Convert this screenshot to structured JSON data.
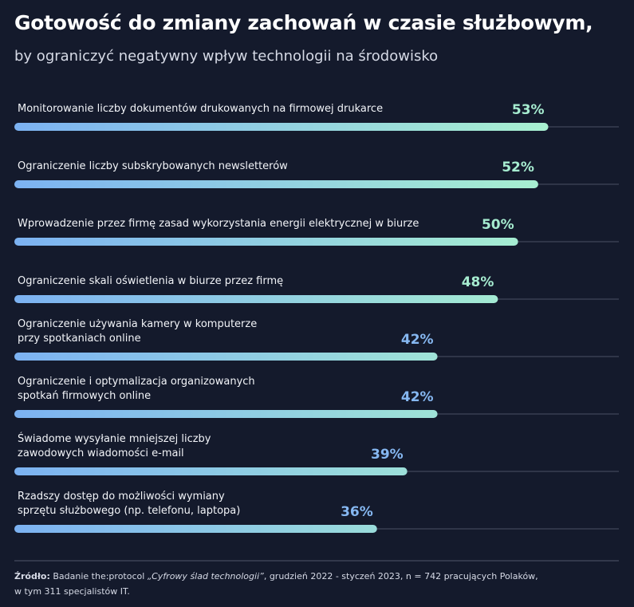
{
  "chart_data": {
    "type": "bar",
    "orientation": "horizontal",
    "title": "Gotowość do zmiany zachowań w czasie służbowym,",
    "subtitle": "by ograniczyć negatywny wpływ technologii na środowisko",
    "categories": [
      "Monitorowanie liczby dokumentów drukowanych na firmowej drukarce",
      "Ograniczenie liczby subskrybowanych newsletterów",
      "Wprowadzenie przez firmę zasad wykorzystania energii elektrycznej w biurze",
      "Ograniczenie skali oświetlenia w biurze przez firmę",
      "Ograniczenie używania kamery w komputerze\nprzy spotkaniach online",
      "Ograniczenie i optymalizacja organizowanych\nspotkań firmowych online",
      "Świadome wysyłanie mniejszej liczby\nzawodowych wiadomości e-mail",
      "Rzadszy dostęp do możliwości wymiany\nsprzętu służbowego (np. telefonu, laptopa)"
    ],
    "values": [
      53,
      52,
      50,
      48,
      42,
      42,
      39,
      36
    ],
    "value_labels": [
      "53%",
      "52%",
      "50%",
      "48%",
      "42%",
      "42%",
      "39%",
      "36%"
    ],
    "value_label_colors": [
      "#a6ecd0",
      "#a6ecd0",
      "#a6ecd0",
      "#a6ecd0",
      "#86b8f2",
      "#86b8f2",
      "#86b8f2",
      "#86b8f2"
    ],
    "gradient_colors": [
      "#7cb2f2",
      "#a8f0d0"
    ],
    "xlim": [
      0,
      60
    ],
    "source": {
      "label": "Źródło:",
      "text_before": " Badanie the:protocol ",
      "title": "„Cyfrowy ślad technologii”",
      "text_after": ", grudzień 2022 - styczeń 2023, n = 742 pracujących Polaków,\nw tym 311 specjalistów IT."
    }
  }
}
